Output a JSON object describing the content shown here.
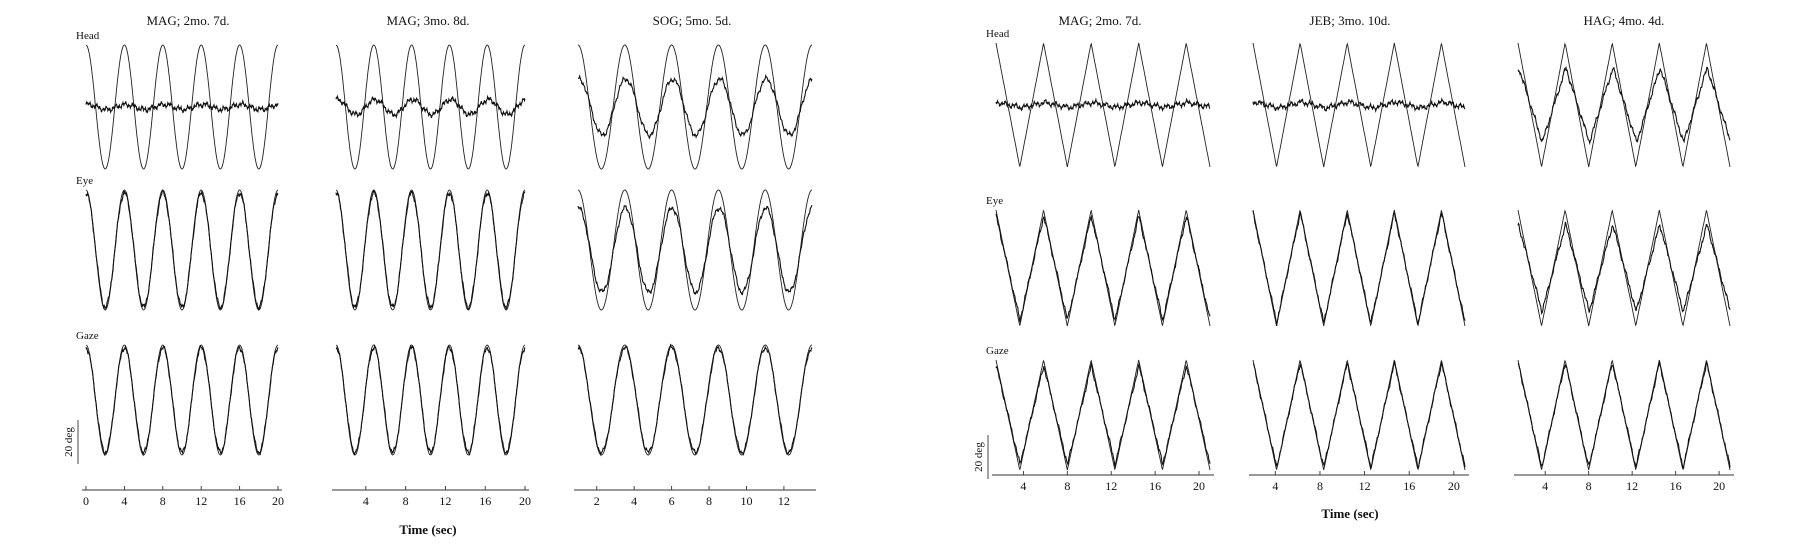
{
  "chart_data": [
    {
      "type": "line",
      "title": "MAG; 2mo. 7d.",
      "xlabel": "Time (sec)",
      "row_labels": [
        "Head",
        "Eye",
        "Gaze"
      ],
      "x_ticks": [
        0,
        4,
        8,
        12,
        16,
        20
      ],
      "xlim": [
        0,
        20
      ],
      "scale_bar": "20 deg",
      "stimulus_waveform": "sine",
      "cycles_shown": 5,
      "series": [
        {
          "row": "Head",
          "response_gain": 0.04
        },
        {
          "row": "Eye",
          "response_gain": 0.95
        },
        {
          "row": "Gaze",
          "response_gain": 0.95
        }
      ]
    },
    {
      "type": "line",
      "title": "MAG; 3mo. 8d.",
      "xlabel": "Time (sec)",
      "x_ticks": [
        4,
        8,
        12,
        16,
        20
      ],
      "xlim": [
        1,
        20
      ],
      "stimulus_waveform": "sine",
      "cycles_shown": 5,
      "series": [
        {
          "row": "Head",
          "response_gain": 0.12
        },
        {
          "row": "Eye",
          "response_gain": 0.95
        },
        {
          "row": "Gaze",
          "response_gain": 0.95
        }
      ]
    },
    {
      "type": "line",
      "title": "SOG; 5mo. 5d.",
      "xlabel": "Time (sec)",
      "x_ticks": [
        2,
        4,
        6,
        8,
        10,
        12
      ],
      "xlim": [
        1,
        13.5
      ],
      "stimulus_waveform": "sine",
      "cycles_shown": 5,
      "series": [
        {
          "row": "Head",
          "response_gain": 0.45
        },
        {
          "row": "Eye",
          "response_gain": 0.7
        },
        {
          "row": "Gaze",
          "response_gain": 0.95
        }
      ]
    },
    {
      "type": "line",
      "title": "MAG; 2mo. 7d.",
      "xlabel": "Time (sec)",
      "row_labels": [
        "Head",
        "Eye",
        "Gaze"
      ],
      "x_ticks": [
        4,
        8,
        12,
        16,
        20
      ],
      "xlim": [
        1.5,
        21
      ],
      "scale_bar": "20 deg",
      "stimulus_waveform": "triangle",
      "cycles_shown": 4.5,
      "series": [
        {
          "row": "Head",
          "response_gain": 0.04
        },
        {
          "row": "Eye",
          "response_gain": 0.9
        },
        {
          "row": "Gaze",
          "response_gain": 0.9
        }
      ]
    },
    {
      "type": "line",
      "title": "JEB; 3mo. 10d.",
      "xlabel": "Time (sec)",
      "x_ticks": [
        4,
        8,
        12,
        16,
        20
      ],
      "xlim": [
        2,
        21
      ],
      "stimulus_waveform": "triangle",
      "cycles_shown": 4.5,
      "series": [
        {
          "row": "Head",
          "response_gain": 0.05
        },
        {
          "row": "Eye",
          "response_gain": 0.95
        },
        {
          "row": "Gaze",
          "response_gain": 0.95
        }
      ]
    },
    {
      "type": "line",
      "title": "HAG; 4mo. 4d.",
      "xlabel": "Time (sec)",
      "x_ticks": [
        4,
        8,
        12,
        16,
        20
      ],
      "xlim": [
        1.5,
        21
      ],
      "stimulus_waveform": "triangle",
      "cycles_shown": 4.5,
      "series": [
        {
          "row": "Head",
          "response_gain": 0.6
        },
        {
          "row": "Eye",
          "response_gain": 0.75
        },
        {
          "row": "Gaze",
          "response_gain": 0.95
        }
      ]
    }
  ]
}
